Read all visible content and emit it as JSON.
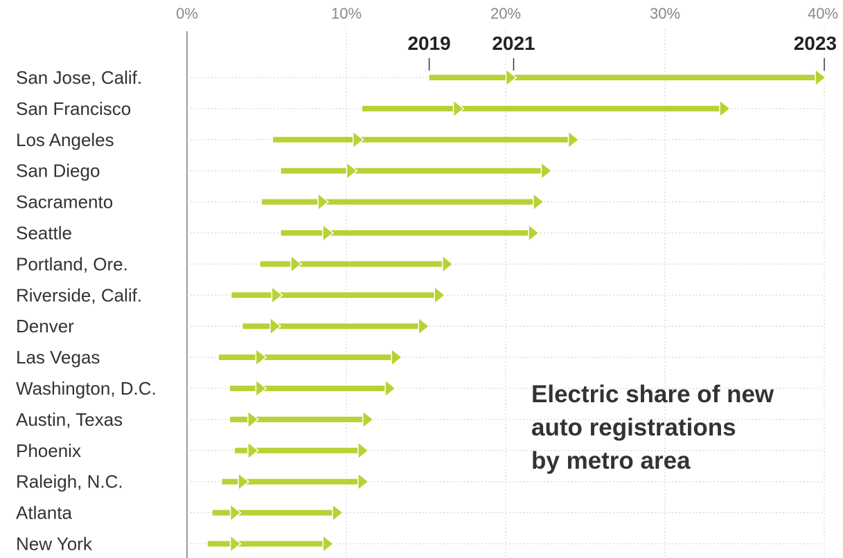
{
  "chart_data": {
    "type": "arrow-range",
    "title_lines": [
      "Electric share of new",
      "auto registrations",
      "by metro area"
    ],
    "x_ticks": [
      "0%",
      "10%",
      "20%",
      "30%",
      "40%"
    ],
    "xlim": [
      0,
      40
    ],
    "year_labels": [
      "2019",
      "2021",
      "2023"
    ],
    "categories": [
      "San Jose, Calif.",
      "San Francisco",
      "Los Angeles",
      "San Diego",
      "Sacramento",
      "Seattle",
      "Portland, Ore.",
      "Riverside, Calif.",
      "Denver",
      "Las Vegas",
      "Washington, D.C.",
      "Austin, Texas",
      "Phoenix",
      "Raleigh, N.C.",
      "Atlanta",
      "New York"
    ],
    "series": [
      {
        "name": "2019",
        "values": [
          15.2,
          11.0,
          5.4,
          5.9,
          4.7,
          5.9,
          4.6,
          2.8,
          3.5,
          2.0,
          2.7,
          2.7,
          3.0,
          2.2,
          1.6,
          1.3
        ]
      },
      {
        "name": "2021",
        "values": [
          20.5,
          17.2,
          10.9,
          10.5,
          8.7,
          9.0,
          7.0,
          5.8,
          5.7,
          4.8,
          4.8,
          4.3,
          4.3,
          3.7,
          3.2,
          3.2
        ]
      },
      {
        "name": "2023",
        "values": [
          40.0,
          34.0,
          24.5,
          22.8,
          22.3,
          22.0,
          16.6,
          16.1,
          15.1,
          13.4,
          13.0,
          11.6,
          11.3,
          11.3,
          9.7,
          9.1
        ]
      }
    ],
    "grid": "vertical dotted",
    "colors": {
      "arrow": "#b5d334",
      "grid": "#cccccc",
      "axis": "#999999",
      "text": "#333333",
      "tick": "#888888"
    }
  }
}
